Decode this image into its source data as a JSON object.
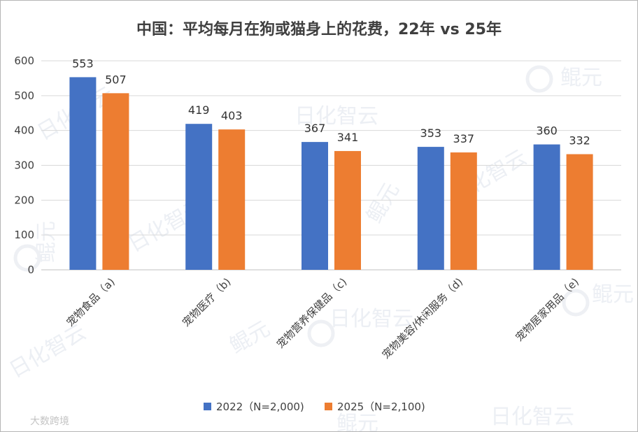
{
  "chart_data": {
    "type": "bar",
    "title": "中国：平均每月在狗或猫身上的花费，22年 vs 25年",
    "categories": [
      "宠物食品（a)",
      "宠物医疗（b)",
      "宠物营养保健品（c)",
      "宠物美容/休闲服务（d)",
      "宠物居家用品（e)"
    ],
    "series": [
      {
        "name": "2022（N=2,000)",
        "color": "#4472C4",
        "values": [
          553,
          419,
          367,
          353,
          360
        ]
      },
      {
        "name": "2025（N=2,100)",
        "color": "#ED7D31",
        "values": [
          507,
          403,
          341,
          337,
          332
        ]
      }
    ],
    "yticks": [
      "0",
      "100",
      "200",
      "300",
      "400",
      "500",
      "600"
    ],
    "ylim": [
      0,
      600
    ],
    "grid": true,
    "legend_position": "bottom"
  },
  "watermarks": {
    "brand_a": "日化智云",
    "brand_b": "鲲元",
    "source": "大数跨境"
  }
}
